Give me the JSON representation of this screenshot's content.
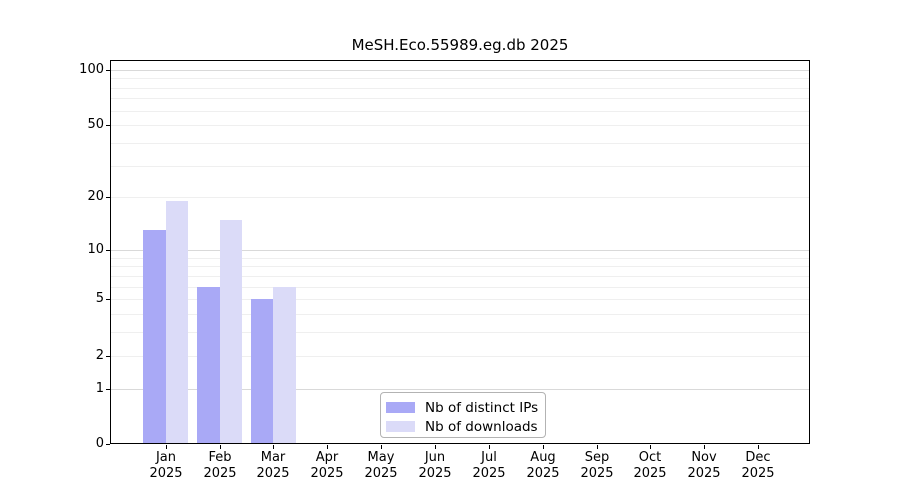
{
  "title": "MeSH.Eco.55989.eg.db 2025",
  "chart_data": {
    "type": "bar",
    "title": "MeSH.Eco.55989.eg.db 2025",
    "x_months": [
      "Jan",
      "Feb",
      "Mar",
      "Apr",
      "May",
      "Jun",
      "Jul",
      "Aug",
      "Sep",
      "Oct",
      "Nov",
      "Dec"
    ],
    "x_year": "2025",
    "series": [
      {
        "name": "Nb of distinct IPs",
        "color": "#a9a9f6",
        "values": [
          13,
          6,
          5,
          0,
          0,
          0,
          0,
          0,
          0,
          0,
          0,
          0
        ]
      },
      {
        "name": "Nb of downloads",
        "color": "#dbdbf8",
        "values": [
          19,
          15,
          6,
          0,
          0,
          0,
          0,
          0,
          0,
          0,
          0,
          0
        ]
      }
    ],
    "yscale": "log1p",
    "yticks": [
      0,
      1,
      2,
      5,
      10,
      20,
      50,
      100
    ],
    "ylim": [
      0,
      112
    ],
    "grid_major_values": [
      1,
      10,
      100
    ],
    "grid_minor_values": [
      2,
      3,
      4,
      5,
      6,
      7,
      8,
      9,
      20,
      30,
      40,
      50,
      60,
      70,
      80,
      90
    ],
    "grid": true,
    "legend_position": "lower center"
  },
  "colors": {
    "ips_bar": "#a9a9f6",
    "downloads_bar": "#dbdbf8",
    "grid_minor": "#efefef",
    "grid_major": "#d9d9d9",
    "axis": "#000000",
    "legend_border": "#b3b3b3",
    "background": "#ffffff"
  }
}
